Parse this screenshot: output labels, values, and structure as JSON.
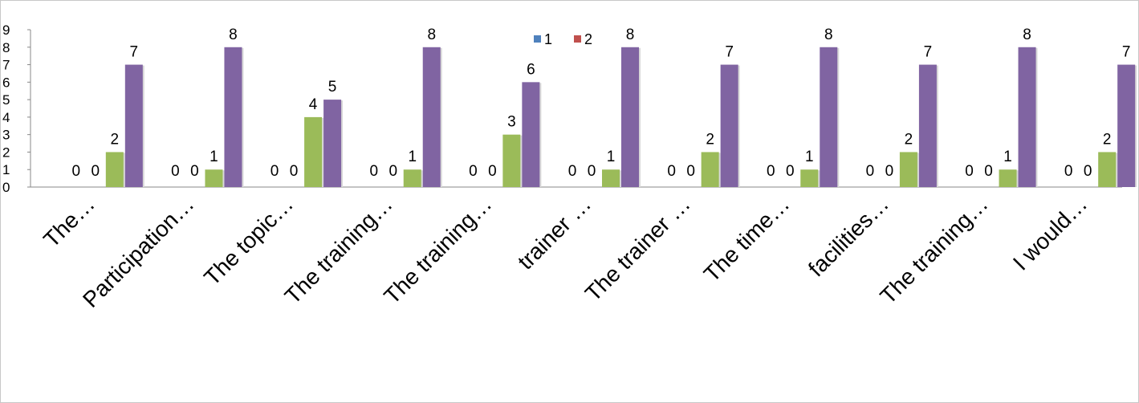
{
  "chart_data": {
    "type": "bar",
    "categories": [
      "The…",
      "Participation…",
      "The topic…",
      "The training…",
      "The training…",
      "trainer …",
      "The trainer …",
      "The time…",
      "facilities…",
      "The training…",
      "I would…"
    ],
    "series": [
      {
        "name": "1",
        "color": "#4f81bd",
        "values": [
          0,
          0,
          0,
          0,
          0,
          0,
          0,
          0,
          0,
          0,
          0
        ]
      },
      {
        "name": "2",
        "color": "#c0504d",
        "values": [
          0,
          0,
          0,
          0,
          0,
          0,
          0,
          0,
          0,
          0,
          0
        ]
      },
      {
        "name": "",
        "color": "#9bbb59",
        "values": [
          2,
          1,
          4,
          1,
          3,
          1,
          2,
          1,
          2,
          1,
          2
        ]
      },
      {
        "name": "",
        "color": "#8064a2",
        "values": [
          7,
          8,
          5,
          8,
          6,
          8,
          7,
          8,
          7,
          8,
          7
        ]
      }
    ],
    "yticks": [
      "0",
      "1",
      "2",
      "3",
      "4",
      "5",
      "6",
      "7",
      "8",
      "9"
    ],
    "ylim": [
      0,
      9
    ],
    "grid": false,
    "legend_position": "top-center",
    "data_labels": true
  }
}
